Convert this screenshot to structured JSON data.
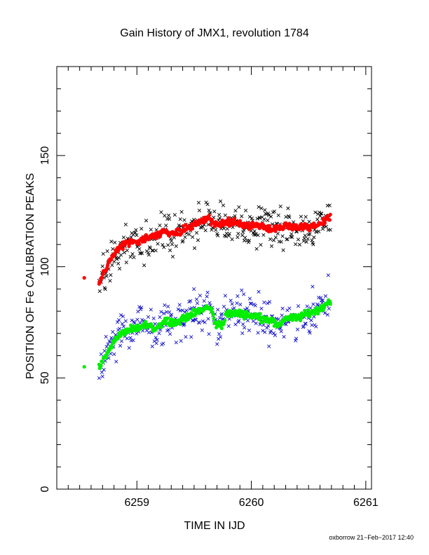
{
  "chart_data": {
    "type": "scatter",
    "title": "Gain History of JMX1, revolution 1784",
    "xlabel": "TIME IN IJD",
    "ylabel": "POSITION OF Fe CALIBRATION PEAKS",
    "xlim": [
      6258.3,
      6261.05
    ],
    "ylim": [
      0,
      190
    ],
    "xticks": [
      6259,
      6260,
      6261
    ],
    "yticks": [
      0,
      50,
      100,
      150
    ],
    "grid": false,
    "legend": "none",
    "series": [
      {
        "marker": "x",
        "color": "#000000",
        "start": 6258.67,
        "end": 6260.69,
        "n": 340,
        "anchors": [
          [
            6258.67,
            93
          ],
          [
            6258.72,
            98
          ],
          [
            6258.78,
            104
          ],
          [
            6258.85,
            109
          ],
          [
            6258.92,
            111
          ],
          [
            6259.0,
            111
          ],
          [
            6259.1,
            113
          ],
          [
            6259.25,
            116
          ],
          [
            6259.35,
            115
          ],
          [
            6259.45,
            118
          ],
          [
            6259.55,
            120
          ],
          [
            6259.62,
            122
          ],
          [
            6259.65,
            120
          ],
          [
            6259.7,
            119
          ],
          [
            6259.8,
            120
          ],
          [
            6259.9,
            120
          ],
          [
            6260.0,
            118
          ],
          [
            6260.1,
            118
          ],
          [
            6260.2,
            117
          ],
          [
            6260.3,
            118
          ],
          [
            6260.4,
            118
          ],
          [
            6260.5,
            117
          ],
          [
            6260.6,
            119
          ],
          [
            6260.69,
            123
          ]
        ],
        "scatter": 4.5
      },
      {
        "marker": "dot",
        "color": "#ff0000",
        "start": 6258.67,
        "end": 6260.69,
        "n": 380,
        "anchors": [
          [
            6258.67,
            93
          ],
          [
            6258.72,
            98
          ],
          [
            6258.78,
            104
          ],
          [
            6258.85,
            109
          ],
          [
            6258.92,
            111
          ],
          [
            6259.0,
            111
          ],
          [
            6259.1,
            113
          ],
          [
            6259.25,
            116
          ],
          [
            6259.35,
            115
          ],
          [
            6259.45,
            118
          ],
          [
            6259.55,
            120
          ],
          [
            6259.62,
            122
          ],
          [
            6259.65,
            120
          ],
          [
            6259.7,
            119
          ],
          [
            6259.8,
            120
          ],
          [
            6259.9,
            120
          ],
          [
            6260.0,
            118
          ],
          [
            6260.1,
            118
          ],
          [
            6260.2,
            117
          ],
          [
            6260.3,
            118
          ],
          [
            6260.4,
            118
          ],
          [
            6260.5,
            117
          ],
          [
            6260.6,
            119
          ],
          [
            6260.69,
            123
          ]
        ],
        "scatter": 0.8,
        "extra_points": [
          [
            6258.54,
            95
          ]
        ]
      },
      {
        "marker": "x",
        "color": "#1010c8",
        "start": 6258.67,
        "end": 6260.69,
        "n": 340,
        "anchors": [
          [
            6258.67,
            54
          ],
          [
            6258.7,
            58
          ],
          [
            6258.75,
            62
          ],
          [
            6258.82,
            68
          ],
          [
            6258.9,
            71
          ],
          [
            6259.0,
            72
          ],
          [
            6259.08,
            74
          ],
          [
            6259.15,
            72
          ],
          [
            6259.25,
            76
          ],
          [
            6259.35,
            75
          ],
          [
            6259.45,
            78
          ],
          [
            6259.55,
            80
          ],
          [
            6259.62,
            82
          ],
          [
            6259.66,
            80
          ],
          [
            6259.68,
            74
          ],
          [
            6259.75,
            74
          ],
          [
            6259.78,
            79
          ],
          [
            6259.9,
            79
          ],
          [
            6260.0,
            78
          ],
          [
            6260.1,
            77
          ],
          [
            6260.18,
            76
          ],
          [
            6260.22,
            73
          ],
          [
            6260.3,
            77
          ],
          [
            6260.4,
            77
          ],
          [
            6260.5,
            79
          ],
          [
            6260.6,
            81
          ],
          [
            6260.69,
            85
          ]
        ],
        "scatter": 4.5
      },
      {
        "marker": "dot",
        "color": "#00ee00",
        "start": 6258.67,
        "end": 6260.69,
        "n": 380,
        "anchors": [
          [
            6258.67,
            54
          ],
          [
            6258.7,
            58
          ],
          [
            6258.75,
            62
          ],
          [
            6258.82,
            68
          ],
          [
            6258.9,
            71
          ],
          [
            6259.0,
            72
          ],
          [
            6259.08,
            74
          ],
          [
            6259.15,
            72
          ],
          [
            6259.25,
            76
          ],
          [
            6259.35,
            75
          ],
          [
            6259.45,
            78
          ],
          [
            6259.55,
            80
          ],
          [
            6259.62,
            82
          ],
          [
            6259.66,
            80
          ],
          [
            6259.68,
            74
          ],
          [
            6259.75,
            74
          ],
          [
            6259.78,
            79
          ],
          [
            6259.9,
            79
          ],
          [
            6260.0,
            78
          ],
          [
            6260.1,
            77
          ],
          [
            6260.18,
            76
          ],
          [
            6260.22,
            73
          ],
          [
            6260.3,
            77
          ],
          [
            6260.4,
            77
          ],
          [
            6260.5,
            79
          ],
          [
            6260.6,
            81
          ],
          [
            6260.69,
            85
          ]
        ],
        "scatter": 0.8,
        "extra_points": [
          [
            6258.54,
            55
          ]
        ]
      }
    ]
  },
  "footer": "oxborrow 21−Feb−2017 12:40"
}
